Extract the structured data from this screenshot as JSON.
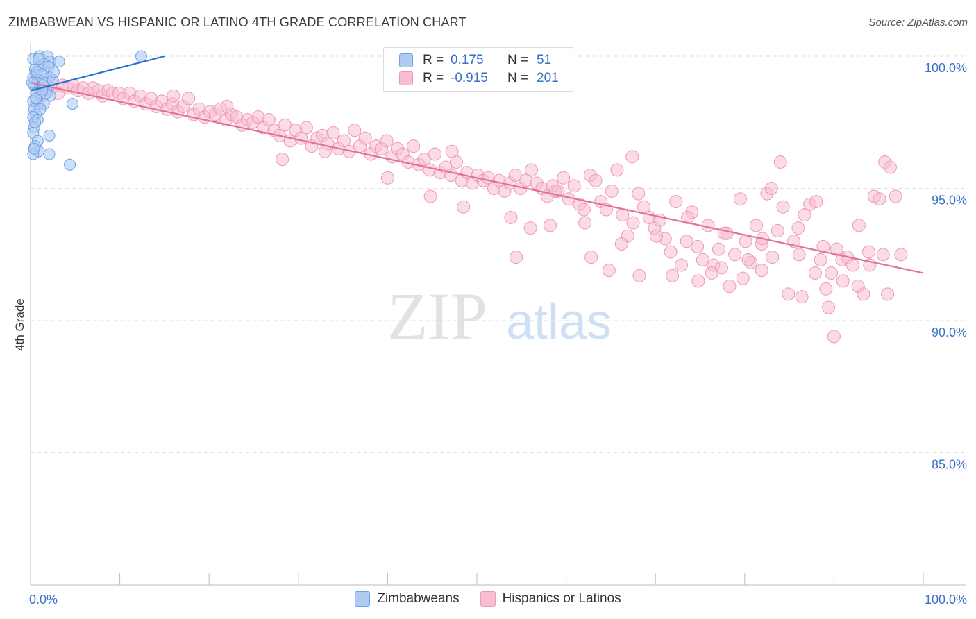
{
  "header": {
    "title": "ZIMBABWEAN VS HISPANIC OR LATINO 4TH GRADE CORRELATION CHART",
    "source": "Source: ZipAtlas.com"
  },
  "watermark": {
    "zip": "ZIP",
    "atlas": "atlas"
  },
  "legend_top": {
    "rows": [
      {
        "r_label": "R =",
        "r_value": "0.175",
        "n_label": "N =",
        "n_value": "51"
      },
      {
        "r_label": "R =",
        "r_value": "-0.915",
        "n_label": "N =",
        "n_value": "201"
      }
    ]
  },
  "legend_bottom": [
    "Zimbabweans",
    "Hispanics or Latinos"
  ],
  "colors": {
    "blue_fill": "#aecbf2",
    "blue_stroke": "#6d9ee6",
    "blue_line": "#2b6fd1",
    "pink_fill": "#f7bdd0",
    "pink_stroke": "#ee97b5",
    "pink_line": "#e0709b",
    "tick_label": "#3b6fc9",
    "grid": "#dedede"
  },
  "chart_data": {
    "type": "scatter",
    "title": "ZIMBABWEAN VS HISPANIC OR LATINO 4TH GRADE CORRELATION CHART",
    "xlabel": "",
    "ylabel": "4th Grade",
    "xlim": [
      0,
      100
    ],
    "ylim": [
      80.0,
      100.5
    ],
    "x_tick_labels": [
      "0.0%",
      "100.0%"
    ],
    "y_ticks": [
      85,
      90,
      95,
      100
    ],
    "y_tick_labels": [
      "85.0%",
      "90.0%",
      "95.0%",
      "100.0%"
    ],
    "grid": true,
    "legend_position": "bottom",
    "series": [
      {
        "name": "Zimbabweans",
        "r": 0.175,
        "n": 51,
        "trend": [
          [
            0,
            98.7
          ],
          [
            15,
            100.0
          ]
        ],
        "points": [
          [
            0.3,
            99.9
          ],
          [
            1.0,
            100.0
          ],
          [
            1.9,
            100.0
          ],
          [
            2.2,
            99.8
          ],
          [
            3.2,
            99.8
          ],
          [
            12.4,
            100.0
          ],
          [
            0.5,
            99.5
          ],
          [
            1.1,
            99.6
          ],
          [
            1.5,
            99.7
          ],
          [
            2.0,
            99.6
          ],
          [
            0.7,
            99.3
          ],
          [
            1.3,
            99.3
          ],
          [
            2.1,
            99.2
          ],
          [
            0.3,
            99.2
          ],
          [
            0.8,
            99.1
          ],
          [
            1.6,
            99.0
          ],
          [
            2.5,
            99.1
          ],
          [
            0.4,
            98.9
          ],
          [
            1.0,
            98.8
          ],
          [
            1.8,
            98.7
          ],
          [
            0.6,
            98.6
          ],
          [
            1.2,
            98.5
          ],
          [
            2.2,
            98.5
          ],
          [
            0.3,
            98.3
          ],
          [
            0.9,
            98.2
          ],
          [
            1.5,
            98.2
          ],
          [
            4.7,
            98.2
          ],
          [
            0.4,
            98.0
          ],
          [
            0.6,
            97.8
          ],
          [
            0.3,
            97.7
          ],
          [
            0.8,
            97.6
          ],
          [
            0.4,
            97.3
          ],
          [
            0.3,
            97.1
          ],
          [
            2.1,
            97.0
          ],
          [
            0.8,
            96.8
          ],
          [
            0.5,
            96.6
          ],
          [
            0.9,
            96.4
          ],
          [
            0.3,
            96.3
          ],
          [
            2.1,
            96.3
          ],
          [
            4.4,
            95.9
          ],
          [
            0.2,
            99.0
          ],
          [
            1.4,
            98.9
          ],
          [
            0.6,
            98.4
          ],
          [
            1.1,
            98.0
          ],
          [
            0.5,
            97.5
          ],
          [
            1.7,
            98.6
          ],
          [
            2.6,
            99.4
          ],
          [
            0.9,
            99.9
          ],
          [
            1.3,
            98.7
          ],
          [
            0.4,
            96.5
          ],
          [
            0.7,
            99.4
          ]
        ]
      },
      {
        "name": "Hispanics or Latinos",
        "r": -0.915,
        "n": 201,
        "trend": [
          [
            0,
            99.0
          ],
          [
            100,
            91.8
          ]
        ],
        "points": [
          [
            1.2,
            98.9
          ],
          [
            2.0,
            98.8
          ],
          [
            2.6,
            98.9
          ],
          [
            3.1,
            98.6
          ],
          [
            3.6,
            98.9
          ],
          [
            4.2,
            98.8
          ],
          [
            4.8,
            98.9
          ],
          [
            5.3,
            98.7
          ],
          [
            5.9,
            98.8
          ],
          [
            6.5,
            98.6
          ],
          [
            7.0,
            98.8
          ],
          [
            7.6,
            98.7
          ],
          [
            8.1,
            98.5
          ],
          [
            8.7,
            98.7
          ],
          [
            9.2,
            98.6
          ],
          [
            9.9,
            98.6
          ],
          [
            10.4,
            98.4
          ],
          [
            11.1,
            98.6
          ],
          [
            11.6,
            98.3
          ],
          [
            12.3,
            98.5
          ],
          [
            12.9,
            98.2
          ],
          [
            13.5,
            98.4
          ],
          [
            14.1,
            98.1
          ],
          [
            14.7,
            98.3
          ],
          [
            15.3,
            98.0
          ],
          [
            15.9,
            98.2
          ],
          [
            16.5,
            97.9
          ],
          [
            17.1,
            98.1
          ],
          [
            17.7,
            98.4
          ],
          [
            18.3,
            97.8
          ],
          [
            18.9,
            98.0
          ],
          [
            19.5,
            97.7
          ],
          [
            20.1,
            97.9
          ],
          [
            20.7,
            97.8
          ],
          [
            21.3,
            98.0
          ],
          [
            21.9,
            97.6
          ],
          [
            22.5,
            97.8
          ],
          [
            23.1,
            97.7
          ],
          [
            23.7,
            97.4
          ],
          [
            24.3,
            97.6
          ],
          [
            24.9,
            97.5
          ],
          [
            25.5,
            97.7
          ],
          [
            26.1,
            97.3
          ],
          [
            26.7,
            97.6
          ],
          [
            27.3,
            97.2
          ],
          [
            27.9,
            97.0
          ],
          [
            28.5,
            97.4
          ],
          [
            29.1,
            96.8
          ],
          [
            29.7,
            97.2
          ],
          [
            30.3,
            96.9
          ],
          [
            30.9,
            97.3
          ],
          [
            31.5,
            96.6
          ],
          [
            32.1,
            96.9
          ],
          [
            32.7,
            97.0
          ],
          [
            33.3,
            96.7
          ],
          [
            33.9,
            97.1
          ],
          [
            34.5,
            96.5
          ],
          [
            35.1,
            96.8
          ],
          [
            35.7,
            96.4
          ],
          [
            36.3,
            97.2
          ],
          [
            36.9,
            96.6
          ],
          [
            37.5,
            96.9
          ],
          [
            38.1,
            96.3
          ],
          [
            38.7,
            96.6
          ],
          [
            39.3,
            96.5
          ],
          [
            39.9,
            96.8
          ],
          [
            40.5,
            96.2
          ],
          [
            41.1,
            96.5
          ],
          [
            41.7,
            96.3
          ],
          [
            42.3,
            96.0
          ],
          [
            42.9,
            96.6
          ],
          [
            43.5,
            95.9
          ],
          [
            44.1,
            96.1
          ],
          [
            44.7,
            95.7
          ],
          [
            45.3,
            96.3
          ],
          [
            45.9,
            95.6
          ],
          [
            46.5,
            95.8
          ],
          [
            47.1,
            95.5
          ],
          [
            47.7,
            96.0
          ],
          [
            48.3,
            95.3
          ],
          [
            48.9,
            95.6
          ],
          [
            49.5,
            95.2
          ],
          [
            50.1,
            95.5
          ],
          [
            50.7,
            95.3
          ],
          [
            51.3,
            95.4
          ],
          [
            51.9,
            95.0
          ],
          [
            52.5,
            95.3
          ],
          [
            53.1,
            94.9
          ],
          [
            53.7,
            95.2
          ],
          [
            54.3,
            95.5
          ],
          [
            54.9,
            95.0
          ],
          [
            55.5,
            95.3
          ],
          [
            56.1,
            95.7
          ],
          [
            56.7,
            95.2
          ],
          [
            57.3,
            95.0
          ],
          [
            57.9,
            94.7
          ],
          [
            58.5,
            95.1
          ],
          [
            59.1,
            94.9
          ],
          [
            59.7,
            95.4
          ],
          [
            60.3,
            94.6
          ],
          [
            60.9,
            95.1
          ],
          [
            61.5,
            94.4
          ],
          [
            62.1,
            93.7
          ],
          [
            62.7,
            95.5
          ],
          [
            63.3,
            95.3
          ],
          [
            63.9,
            94.5
          ],
          [
            64.5,
            94.2
          ],
          [
            65.1,
            94.9
          ],
          [
            65.7,
            95.7
          ],
          [
            66.3,
            94.0
          ],
          [
            66.9,
            93.2
          ],
          [
            67.5,
            93.7
          ],
          [
            68.1,
            94.8
          ],
          [
            68.7,
            94.3
          ],
          [
            69.3,
            93.9
          ],
          [
            69.9,
            93.5
          ],
          [
            70.5,
            93.8
          ],
          [
            71.1,
            93.1
          ],
          [
            71.7,
            92.6
          ],
          [
            72.3,
            94.5
          ],
          [
            72.9,
            92.1
          ],
          [
            73.5,
            93.0
          ],
          [
            74.1,
            94.1
          ],
          [
            74.7,
            92.8
          ],
          [
            75.3,
            92.3
          ],
          [
            75.9,
            93.6
          ],
          [
            76.5,
            92.1
          ],
          [
            77.1,
            92.7
          ],
          [
            77.7,
            93.3
          ],
          [
            78.3,
            91.3
          ],
          [
            78.9,
            92.5
          ],
          [
            79.5,
            94.6
          ],
          [
            80.1,
            93.0
          ],
          [
            80.7,
            92.2
          ],
          [
            81.3,
            93.6
          ],
          [
            81.9,
            92.9
          ],
          [
            82.5,
            94.8
          ],
          [
            83.1,
            92.4
          ],
          [
            83.7,
            93.4
          ],
          [
            84.3,
            94.3
          ],
          [
            84.9,
            91.0
          ],
          [
            85.5,
            93.0
          ],
          [
            86.1,
            92.5
          ],
          [
            86.7,
            94.0
          ],
          [
            87.3,
            94.4
          ],
          [
            87.9,
            91.8
          ],
          [
            88.5,
            92.3
          ],
          [
            89.1,
            91.2
          ],
          [
            89.7,
            91.8
          ],
          [
            90.3,
            92.7
          ],
          [
            90.9,
            92.3
          ],
          [
            91.5,
            92.4
          ],
          [
            92.1,
            92.1
          ],
          [
            92.7,
            91.3
          ],
          [
            93.3,
            91.0
          ],
          [
            93.9,
            92.6
          ],
          [
            94.5,
            94.7
          ],
          [
            95.1,
            94.6
          ],
          [
            95.7,
            96.0
          ],
          [
            96.3,
            95.8
          ],
          [
            96.9,
            94.7
          ],
          [
            97.5,
            92.5
          ],
          [
            16.0,
            98.5
          ],
          [
            22.0,
            98.1
          ],
          [
            28.2,
            96.1
          ],
          [
            33.0,
            96.4
          ],
          [
            40.0,
            95.4
          ],
          [
            44.8,
            94.7
          ],
          [
            48.5,
            94.3
          ],
          [
            53.8,
            93.9
          ],
          [
            56.0,
            93.5
          ],
          [
            58.2,
            93.6
          ],
          [
            62.8,
            92.4
          ],
          [
            64.8,
            91.9
          ],
          [
            68.2,
            91.7
          ],
          [
            71.9,
            91.7
          ],
          [
            74.8,
            91.5
          ],
          [
            77.4,
            92.0
          ],
          [
            79.8,
            91.6
          ],
          [
            81.9,
            91.9
          ],
          [
            83.0,
            95.0
          ],
          [
            86.4,
            90.9
          ],
          [
            88.0,
            94.5
          ],
          [
            89.4,
            90.5
          ],
          [
            91.0,
            91.5
          ],
          [
            92.8,
            93.6
          ],
          [
            96.0,
            91.0
          ],
          [
            90.0,
            89.4
          ],
          [
            86.0,
            93.5
          ],
          [
            76.3,
            91.8
          ],
          [
            66.2,
            92.9
          ],
          [
            67.4,
            96.2
          ],
          [
            70.1,
            93.2
          ],
          [
            73.6,
            93.9
          ],
          [
            78.0,
            93.3
          ],
          [
            84.0,
            96.0
          ],
          [
            88.8,
            92.8
          ],
          [
            94.0,
            92.1
          ],
          [
            95.5,
            92.5
          ],
          [
            80.4,
            92.3
          ],
          [
            82.0,
            93.1
          ],
          [
            62.0,
            94.2
          ],
          [
            58.8,
            94.9
          ],
          [
            54.4,
            92.4
          ],
          [
            47.2,
            96.4
          ]
        ]
      }
    ]
  }
}
